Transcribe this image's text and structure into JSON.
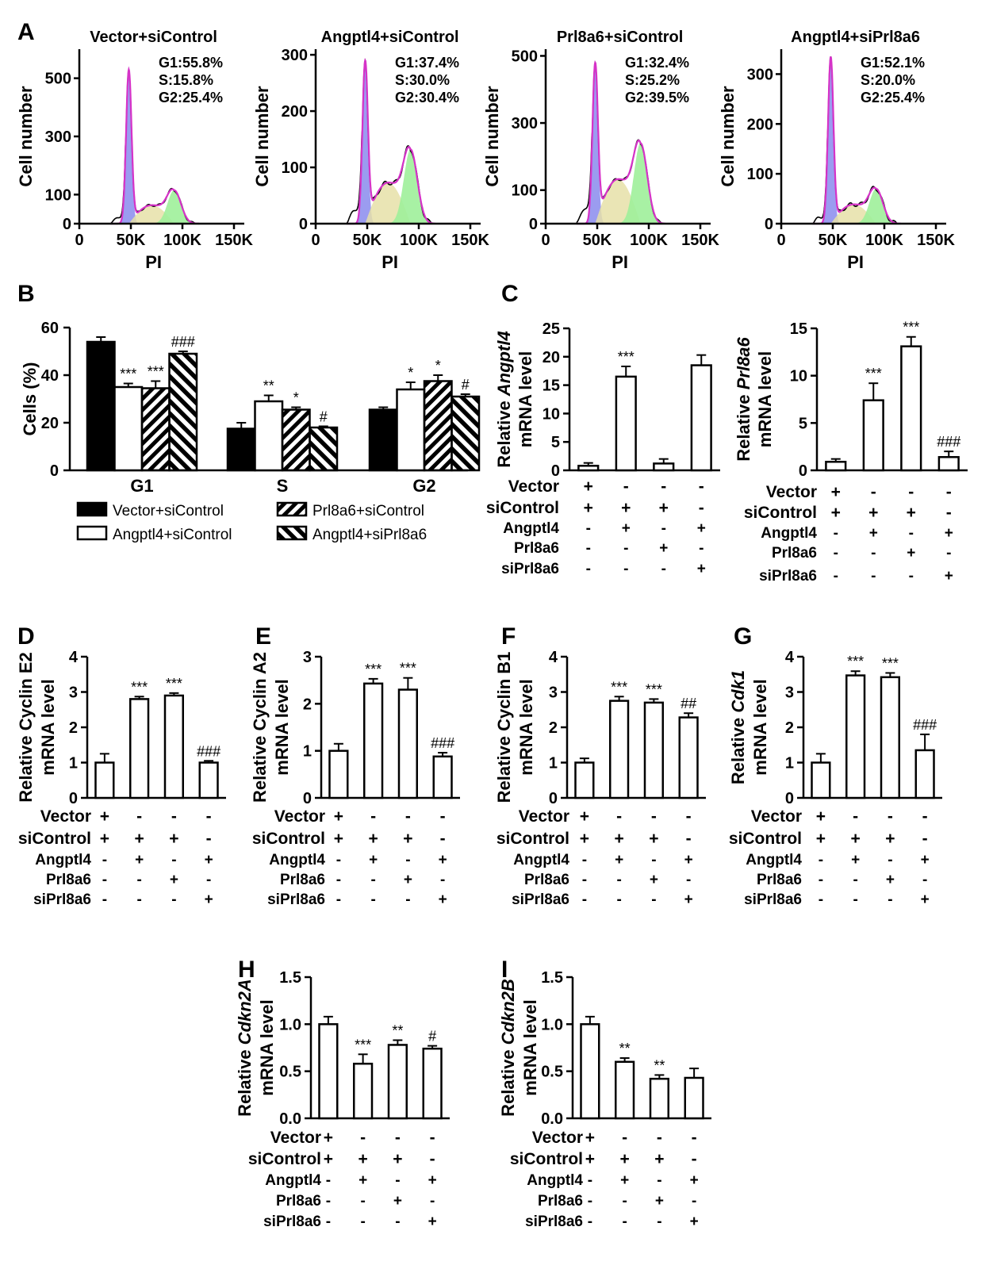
{
  "chart_data": [
    {
      "panel": "A",
      "type": "area",
      "charts": [
        {
          "title": "Vector+siControl",
          "G1": "G1:55.8%",
          "S": "S:15.8%",
          "G2": "G2:25.4%",
          "ylabel": "Cell number",
          "xlabel": "PI",
          "yticks": [
            0,
            100,
            300,
            500
          ],
          "ylim": [
            0,
            600
          ],
          "xticks": [
            "0",
            "50K",
            "100K",
            "150K"
          ],
          "xlim": [
            0,
            160000
          ],
          "g1_peak": 530,
          "g2_peak": 115
        },
        {
          "title": "Angptl4+siControl",
          "G1": "G1:37.4%",
          "S": "S:30.0%",
          "G2": "G2:30.4%",
          "ylabel": "Cell number",
          "xlabel": "PI",
          "yticks": [
            0,
            100,
            200,
            300
          ],
          "ylim": [
            0,
            310
          ],
          "xticks": [
            "0",
            "50K",
            "100K",
            "150K"
          ],
          "xlim": [
            0,
            160000
          ],
          "g1_peak": 290,
          "g2_peak": 132
        },
        {
          "title": "Prl8a6+siControl",
          "G1": "G1:32.4%",
          "S": "S:25.2%",
          "G2": "G2:39.5%",
          "ylabel": "Cell number",
          "xlabel": "PI",
          "yticks": [
            0,
            100,
            300,
            500
          ],
          "ylim": [
            0,
            520
          ],
          "xticks": [
            "0",
            "50K",
            "100K",
            "150K"
          ],
          "xlim": [
            0,
            160000
          ],
          "g1_peak": 480,
          "g2_peak": 240
        },
        {
          "title": "Angptl4+siPrl8a6",
          "G1": "G1:52.1%",
          "S": "S:20.0%",
          "G2": "G2:25.4%",
          "ylabel": "Cell number",
          "xlabel": "PI",
          "yticks": [
            0,
            100,
            200,
            300
          ],
          "ylim": [
            0,
            350
          ],
          "xticks": [
            "0",
            "50K",
            "100K",
            "150K"
          ],
          "xlim": [
            0,
            160000
          ],
          "g1_peak": 335,
          "g2_peak": 70
        }
      ]
    },
    {
      "panel": "B",
      "type": "bar",
      "ylabel": "Cells (%)",
      "ylim": [
        0,
        60
      ],
      "yticks": [
        0,
        20,
        40,
        60
      ],
      "categories": [
        "G1",
        "S",
        "G2"
      ],
      "series": [
        {
          "name": "Vector+siControl",
          "values": [
            54,
            17.5,
            25.5
          ],
          "errors": [
            2,
            2.5,
            1
          ],
          "labels": [
            "",
            "",
            ""
          ]
        },
        {
          "name": "Angptl4+siControl",
          "values": [
            35,
            29,
            34
          ],
          "errors": [
            1.5,
            2.5,
            3
          ],
          "labels": [
            "***",
            "**",
            "*"
          ]
        },
        {
          "name": "Prl8a6+siControl",
          "values": [
            34.5,
            25.5,
            37.5
          ],
          "errors": [
            3,
            1,
            2.5
          ],
          "labels": [
            "***",
            "*",
            "*"
          ]
        },
        {
          "name": "Angptl4+siPrl8a6",
          "values": [
            49,
            18,
            31
          ],
          "errors": [
            1,
            0.5,
            1
          ],
          "labels": [
            "###",
            "#",
            "#"
          ]
        }
      ]
    },
    {
      "panel": "C",
      "type": "bar",
      "ylabel_pre": "Relative ",
      "ylabel_gene": "Angptl4",
      "ylabel2": "mRNA level",
      "ylim": [
        0,
        25
      ],
      "yticks": [
        "0",
        "5",
        "10",
        "15",
        "20",
        "25"
      ],
      "values": [
        0.8,
        16.5,
        1.2,
        18.5
      ],
      "errors": [
        0.5,
        1.8,
        0.8,
        1.8
      ],
      "labels": [
        "",
        "***",
        "",
        ""
      ]
    },
    {
      "panel": "C",
      "type": "bar",
      "ylabel_pre": "Relative ",
      "ylabel_gene": "Prl8a6",
      "ylabel2": "mRNA level",
      "ylim": [
        0,
        15
      ],
      "yticks": [
        "0",
        "5",
        "10",
        "15"
      ],
      "values": [
        0.9,
        7.4,
        13.1,
        1.4
      ],
      "errors": [
        0.3,
        1.8,
        1.0,
        0.6
      ],
      "labels": [
        "",
        "***",
        "***",
        "###"
      ]
    },
    {
      "panel": "D",
      "type": "bar",
      "ylabel_pre": "Relative Cyclin E2",
      "ylabel_gene": "",
      "ylabel2": "mRNA level",
      "ylim": [
        0,
        4
      ],
      "yticks": [
        "0",
        "1",
        "2",
        "3",
        "4"
      ],
      "values": [
        1.0,
        2.8,
        2.9,
        1.0
      ],
      "errors": [
        0.25,
        0.07,
        0.07,
        0.05
      ],
      "labels": [
        "",
        "***",
        "***",
        "###"
      ]
    },
    {
      "panel": "E",
      "type": "bar",
      "ylabel_pre": "Relative Cyclin A2",
      "ylabel_gene": "",
      "ylabel2": "mRNA level",
      "ylim": [
        0,
        3
      ],
      "yticks": [
        "0",
        "1",
        "2",
        "3"
      ],
      "values": [
        1.0,
        2.43,
        2.3,
        0.88
      ],
      "errors": [
        0.15,
        0.1,
        0.25,
        0.08
      ],
      "labels": [
        "",
        "***",
        "***",
        "###"
      ]
    },
    {
      "panel": "F",
      "type": "bar",
      "ylabel_pre": "Relative Cyclin B1",
      "ylabel_gene": "",
      "ylabel2": "mRNA level",
      "ylim": [
        0,
        4
      ],
      "yticks": [
        "0",
        "1",
        "2",
        "3",
        "4"
      ],
      "values": [
        1.0,
        2.75,
        2.7,
        2.28
      ],
      "errors": [
        0.12,
        0.12,
        0.1,
        0.12
      ],
      "labels": [
        "",
        "***",
        "***",
        "##"
      ]
    },
    {
      "panel": "G",
      "type": "bar",
      "ylabel_pre": "Relative ",
      "ylabel_gene": "Cdk1",
      "ylabel2": "mRNA level",
      "ylim": [
        0,
        4
      ],
      "yticks": [
        "0",
        "1",
        "2",
        "3",
        "4"
      ],
      "values": [
        1.0,
        3.47,
        3.42,
        1.35
      ],
      "errors": [
        0.25,
        0.12,
        0.12,
        0.45
      ],
      "labels": [
        "",
        "***",
        "***",
        "###"
      ]
    },
    {
      "panel": "H",
      "type": "bar",
      "ylabel_pre": "Relative ",
      "ylabel_gene": "Cdkn2A",
      "ylabel2": "mRNA level",
      "ylim": [
        0,
        1.5
      ],
      "yticks": [
        "0.0",
        "0.5",
        "1.0",
        "1.5"
      ],
      "values": [
        1.0,
        0.58,
        0.78,
        0.74
      ],
      "errors": [
        0.08,
        0.1,
        0.05,
        0.03
      ],
      "labels": [
        "",
        "***",
        "**",
        "#"
      ]
    },
    {
      "panel": "I",
      "type": "bar",
      "ylabel_pre": "Relative ",
      "ylabel_gene": "Cdkn2B",
      "ylabel2": "mRNA level",
      "ylim": [
        0,
        1.5
      ],
      "yticks": [
        "0.0",
        "0.5",
        "1.0",
        "1.5"
      ],
      "values": [
        1.0,
        0.6,
        0.42,
        0.43
      ],
      "errors": [
        0.08,
        0.04,
        0.04,
        0.1
      ],
      "labels": [
        "",
        "**",
        "**",
        ""
      ]
    }
  ],
  "conditions": {
    "rows": [
      {
        "label": "Vector",
        "signs": [
          "+",
          "-",
          "-",
          "-"
        ]
      },
      {
        "label": "siControl",
        "signs": [
          "+",
          "+",
          "+",
          "-"
        ]
      },
      {
        "label": "Angptl4",
        "signs": [
          "-",
          "+",
          "-",
          "+"
        ]
      },
      {
        "label": "Prl8a6",
        "signs": [
          "-",
          "-",
          "+",
          "-"
        ]
      },
      {
        "label": "siPrl8a6",
        "signs": [
          "-",
          "-",
          "-",
          "+"
        ]
      }
    ]
  },
  "colors": {
    "g1": "#9b9cf0",
    "s": "#e6e0a8",
    "g2": "#9ef09a",
    "fit": "#d633c8",
    "line": "#000000"
  }
}
